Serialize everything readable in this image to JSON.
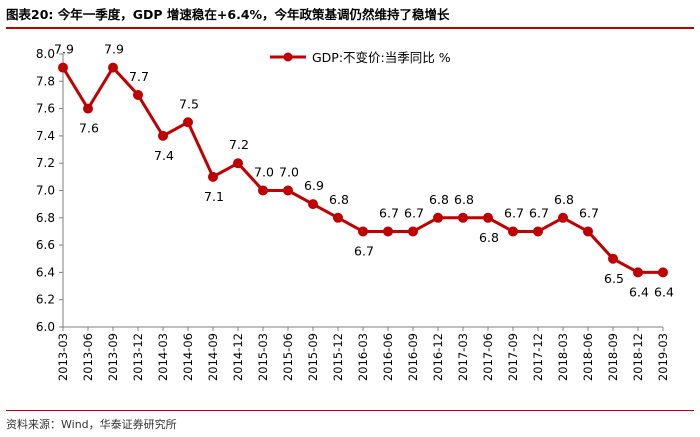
{
  "header": {
    "title": "图表20:   今年一季度，GDP 增速稳在+6.4%，今年政策基调仍然维持了稳增长"
  },
  "footer": {
    "source": "资料来源：Wind，华泰证券研究所"
  },
  "colors": {
    "series": "#c00000",
    "accent_rule": "#c00000",
    "axis": "#7f7f7f"
  },
  "chart_data": {
    "type": "line",
    "title": "",
    "xlabel": "",
    "ylabel": "",
    "ylim": [
      6.0,
      8.0
    ],
    "yticks": [
      "6.0",
      "6.2",
      "6.4",
      "6.6",
      "6.8",
      "7.0",
      "7.2",
      "7.4",
      "7.6",
      "7.8",
      "8.0"
    ],
    "legend_position": "top-center",
    "grid": false,
    "categories": [
      "2013-03",
      "2013-06",
      "2013-09",
      "2013-12",
      "2014-03",
      "2014-06",
      "2014-09",
      "2014-12",
      "2015-03",
      "2015-06",
      "2015-09",
      "2015-12",
      "2016-03",
      "2016-06",
      "2016-09",
      "2016-12",
      "2017-03",
      "2017-06",
      "2017-09",
      "2017-12",
      "2018-03",
      "2018-06",
      "2018-09",
      "2018-12",
      "2019-03"
    ],
    "series": [
      {
        "name": "GDP:不变价:当季同比 %",
        "values": [
          7.9,
          7.6,
          7.9,
          7.7,
          7.4,
          7.5,
          7.1,
          7.2,
          7.0,
          7.0,
          6.9,
          6.8,
          6.7,
          6.7,
          6.7,
          6.8,
          6.8,
          6.8,
          6.7,
          6.7,
          6.8,
          6.7,
          6.5,
          6.4,
          6.4
        ],
        "labels": [
          "7.9",
          "7.6",
          "7.9",
          "7.7",
          "7.4",
          "7.5",
          "7.1",
          "7.2",
          "7.0",
          "7.0",
          "6.9",
          "6.8",
          "6.7",
          "6.7",
          "6.7",
          "6.8",
          "6.8",
          "6.8",
          "6.7",
          "6.7",
          "6.8",
          "6.7",
          "6.5",
          "6.4",
          "6.4"
        ]
      }
    ]
  }
}
